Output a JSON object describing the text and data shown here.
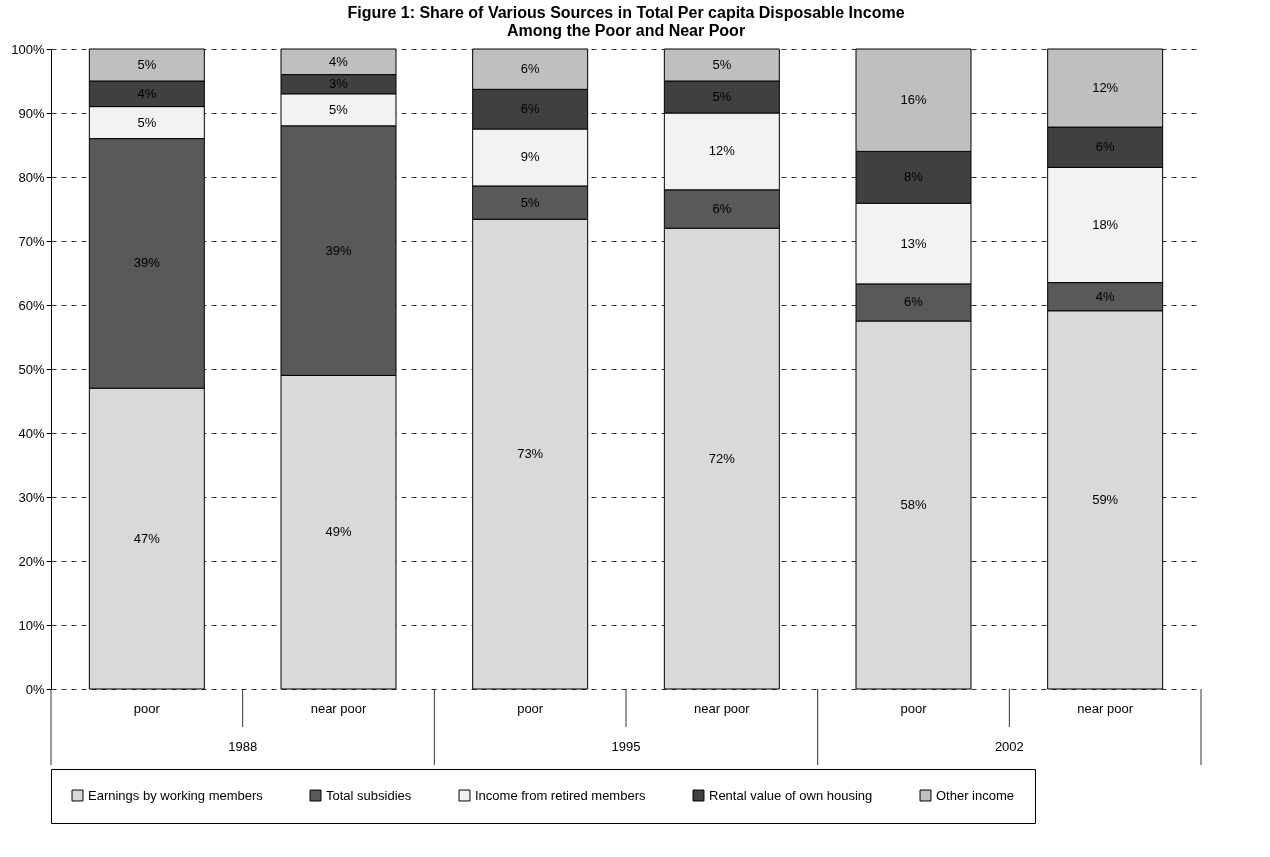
{
  "chart_data": {
    "type": "bar",
    "stacked": true,
    "title": "Figure 1: Share of Various Sources in Total Per capita Disposable Income\nAmong the Poor and Near Poor",
    "categories": [
      "poor",
      "near poor",
      "poor",
      "near poor",
      "poor",
      "near poor"
    ],
    "annotations": [
      "1988",
      "1995",
      "2002"
    ],
    "series": [
      {
        "name": "Earnings by working members",
        "color": "#d9d9d9",
        "values": [
          47,
          49,
          73.4,
          72,
          57.5,
          59.1
        ],
        "value_labels": [
          "47%",
          "49%",
          "73%",
          "72%",
          "58%",
          "59%"
        ]
      },
      {
        "name": "Total subsidies",
        "color": "#595959",
        "values": [
          39,
          39,
          5.2,
          6,
          5.8,
          4.4
        ],
        "value_labels": [
          "39%",
          "39%",
          "5%",
          "6%",
          "6%",
          "4%"
        ]
      },
      {
        "name": "Income from retired members",
        "color": "#f2f2f2",
        "values": [
          5,
          5,
          8.9,
          12,
          12.6,
          18
        ],
        "value_labels": [
          "5%",
          "5%",
          "9%",
          "12%",
          "13%",
          "18%"
        ]
      },
      {
        "name": "Rental value of own housing",
        "color": "#404040",
        "values": [
          4,
          3,
          6.2,
          5,
          8.1,
          6.3
        ],
        "value_labels": [
          "4%",
          "3%",
          "6%",
          "5%",
          "8%",
          "6%"
        ]
      },
      {
        "name": "Other income",
        "color": "#bfbfbf",
        "values": [
          5,
          4,
          6.3,
          5,
          16,
          12.2
        ],
        "value_labels": [
          "5%",
          "4%",
          "6%",
          "5%",
          "16%",
          "12%"
        ]
      }
    ],
    "ylim": [
      0,
      100
    ],
    "yticks": [
      {
        "value": 0,
        "label": "0%"
      },
      {
        "value": 10,
        "label": "10%"
      },
      {
        "value": 20,
        "label": "20%"
      },
      {
        "value": 30,
        "label": "30%"
      },
      {
        "value": 40,
        "label": "40%"
      },
      {
        "value": 50,
        "label": "50%"
      },
      {
        "value": 60,
        "label": "60%"
      },
      {
        "value": 70,
        "label": "70%"
      },
      {
        "value": 80,
        "label": "80%"
      },
      {
        "value": 90,
        "label": "90%"
      },
      {
        "value": 100,
        "label": "100%"
      }
    ],
    "grid": "y",
    "legend": "bottom"
  }
}
